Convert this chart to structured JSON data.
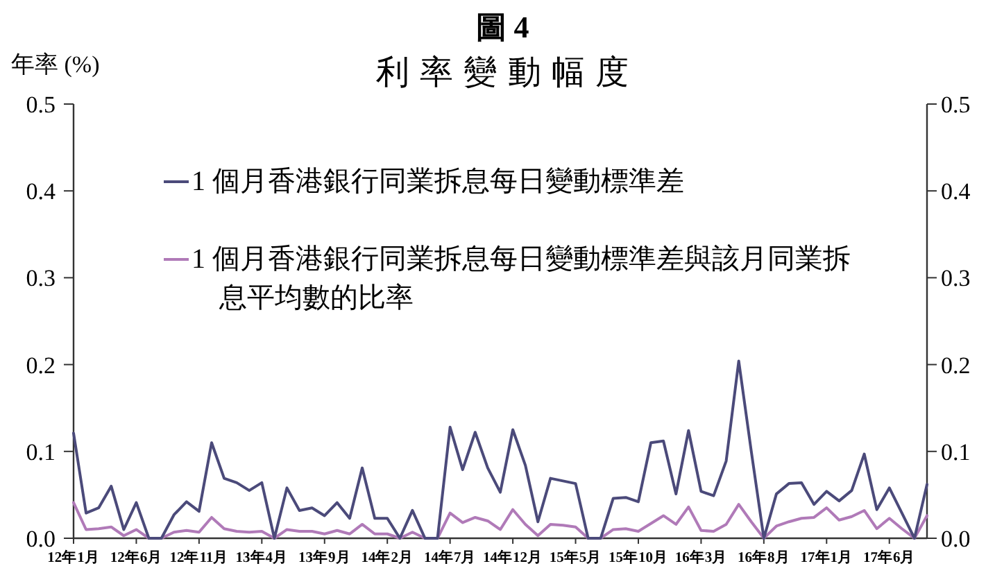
{
  "chart_data": {
    "type": "line",
    "title": "圖 4",
    "subtitle": "利 率 變 動 幅 度",
    "ylabel": "年率 (%)",
    "categories": [
      "12年1月",
      null,
      null,
      null,
      null,
      "12年6月",
      null,
      null,
      null,
      null,
      "12年11月",
      null,
      null,
      null,
      null,
      "13年4月",
      null,
      null,
      null,
      null,
      "13年9月",
      null,
      null,
      null,
      null,
      "14年2月",
      null,
      null,
      null,
      null,
      "14年7月",
      null,
      null,
      null,
      null,
      "14年12月",
      null,
      null,
      null,
      null,
      "15年5月",
      null,
      null,
      null,
      null,
      "15年10月",
      null,
      null,
      null,
      null,
      "16年3月",
      null,
      null,
      null,
      null,
      "16年8月",
      null,
      null,
      null,
      null,
      "17年1月",
      null,
      null,
      null,
      null,
      "17年6月",
      null,
      null,
      null
    ],
    "series": [
      {
        "name": "1 個月香港銀行同業拆息每日變動標準差",
        "color": "#4b4a7a",
        "values": [
          0.121,
          0.029,
          0.035,
          0.06,
          0.01,
          0.041,
          0,
          0,
          0.027,
          0.042,
          0.031,
          0.11,
          0.069,
          0.064,
          0.055,
          0.064,
          0,
          0.058,
          0.032,
          0.035,
          0.026,
          0.041,
          0.023,
          0.081,
          0.023,
          0.023,
          0,
          0.032,
          0,
          0,
          0.128,
          0.079,
          0.122,
          0.081,
          0.053,
          0.125,
          0.084,
          0.019,
          0.069,
          0.066,
          0.063,
          0,
          0,
          0.046,
          0.047,
          0.042,
          0.11,
          0.112,
          0.051,
          0.124,
          0.054,
          0.049,
          0.089,
          0.204,
          0.1,
          0,
          0.051,
          0.063,
          0.064,
          0.039,
          0.054,
          0.043,
          0.055,
          0.097,
          0.033,
          0.058,
          0.029,
          0,
          0.062
        ]
      },
      {
        "name": "1 個月香港銀行同業拆息每日變動標準差與該月同業拆息平均數的比率",
        "color": "#b07ab8",
        "values": [
          0.041,
          0.01,
          0.011,
          0.013,
          0.003,
          0.01,
          0,
          0,
          0.007,
          0.009,
          0.007,
          0.024,
          0.011,
          0.008,
          0.007,
          0.008,
          0,
          0.01,
          0.008,
          0.008,
          0.005,
          0.009,
          0.005,
          0.016,
          0.005,
          0.005,
          0,
          0.007,
          0,
          0,
          0.029,
          0.018,
          0.024,
          0.02,
          0.01,
          0.033,
          0.016,
          0.003,
          0.016,
          0.015,
          0.013,
          0,
          0,
          0.01,
          0.011,
          0.008,
          0.017,
          0.026,
          0.016,
          0.036,
          0.009,
          0.008,
          0.016,
          0.039,
          0.019,
          0,
          0.014,
          0.019,
          0.023,
          0.024,
          0.035,
          0.021,
          0.025,
          0.032,
          0.011,
          0.023,
          0.011,
          0,
          0.026
        ]
      }
    ],
    "ylim": [
      0,
      0.5
    ],
    "yticks": [
      {
        "value": 0,
        "label": "0.0"
      },
      0.1,
      0.2,
      0.3,
      0.4,
      0.5
    ],
    "y2lim": [
      0,
      0.5
    ],
    "y2ticks": [
      {
        "value": 0,
        "label": "0.0"
      },
      0.1,
      0.2,
      0.3,
      0.4,
      0.5
    ],
    "legend": "top",
    "grid": false,
    "marker": "none",
    "line_style": "solid"
  }
}
